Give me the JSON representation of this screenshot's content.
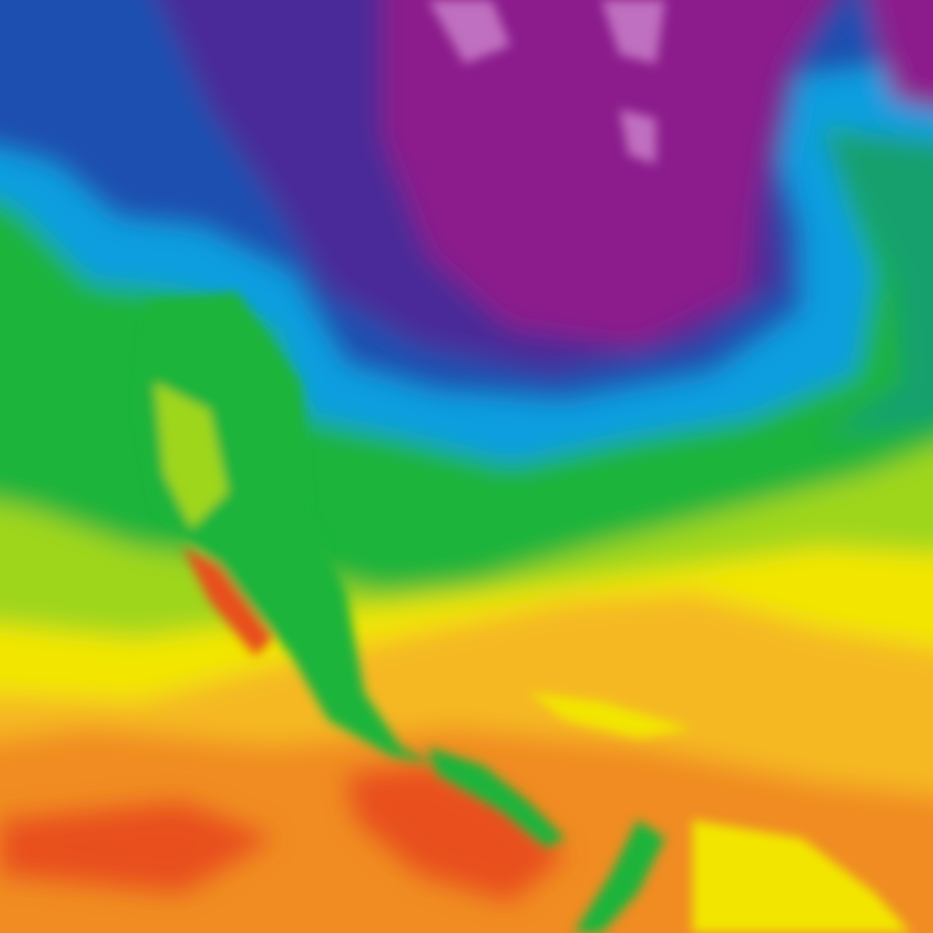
{
  "map": {
    "type": "temperature-heatmap",
    "colors": {
      "hot": "#e8501f",
      "warm": "#f08c22",
      "mild": "#f5b820",
      "yellow": "#f2e600",
      "lime": "#9ed61a",
      "green": "#1fb43a",
      "teal": "#14a06e",
      "cyan": "#0a9ee0",
      "blue": "#1c50b0",
      "indigo": "#4a2a98",
      "purple": "#8c1a8c",
      "pink": "#c070c0"
    }
  }
}
